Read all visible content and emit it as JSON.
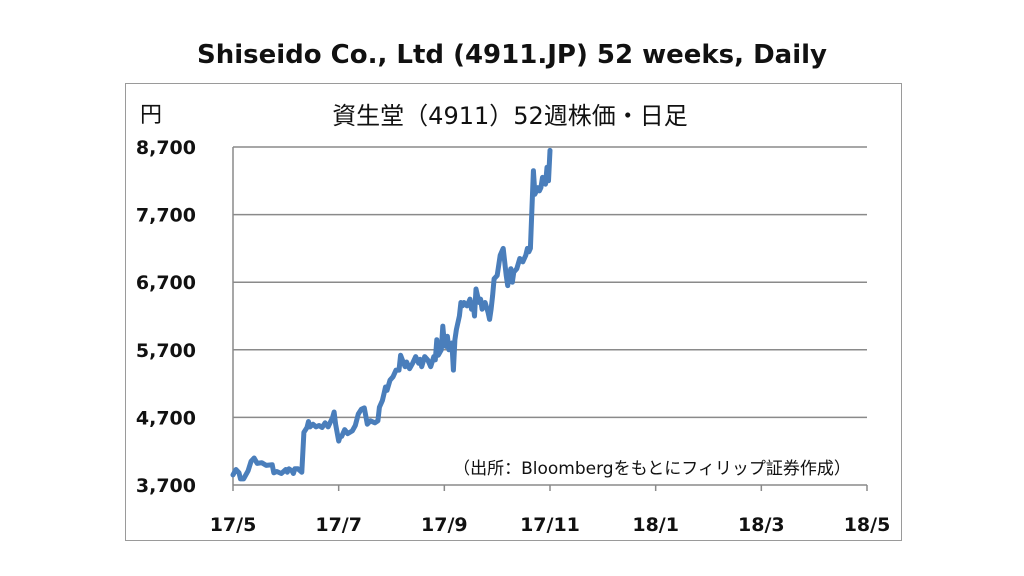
{
  "title": "Shiseido Co., Ltd (4911.JP) 52 weeks, Daily",
  "chart_data": {
    "type": "line",
    "title": "資生堂（4911）52週株価・日足",
    "ylabel": "円",
    "source": "（出所：Bloombergをもとにフィリップ証券作成）",
    "ylim": [
      3700,
      8700
    ],
    "yticks": [
      "3,700",
      "4,700",
      "5,700",
      "6,700",
      "7,700",
      "8,700"
    ],
    "xticks": [
      "17/5",
      "17/7",
      "17/9",
      "17/11",
      "18/1",
      "18/3",
      "18/5"
    ],
    "grid": true,
    "series": [
      {
        "color": "#4a7ebb",
        "points": [
          [
            0.0,
            3850
          ],
          [
            0.1,
            3930
          ],
          [
            0.2,
            3880
          ],
          [
            0.25,
            3790
          ],
          [
            0.35,
            3790
          ],
          [
            0.5,
            3910
          ],
          [
            0.6,
            4050
          ],
          [
            0.7,
            4100
          ],
          [
            0.8,
            4020
          ],
          [
            0.95,
            4030
          ],
          [
            1.1,
            3990
          ],
          [
            1.3,
            4000
          ],
          [
            1.35,
            3880
          ],
          [
            1.45,
            3900
          ],
          [
            1.6,
            3870
          ],
          [
            1.75,
            3930
          ],
          [
            1.8,
            3890
          ],
          [
            1.85,
            3940
          ],
          [
            1.95,
            3910
          ],
          [
            2.0,
            3870
          ],
          [
            2.05,
            3940
          ],
          [
            2.15,
            3940
          ],
          [
            2.2,
            3920
          ],
          [
            2.28,
            3890
          ],
          [
            2.35,
            4480
          ],
          [
            2.45,
            4550
          ],
          [
            2.5,
            4640
          ],
          [
            2.55,
            4560
          ],
          [
            2.65,
            4600
          ],
          [
            2.75,
            4560
          ],
          [
            2.85,
            4580
          ],
          [
            2.95,
            4550
          ],
          [
            3.05,
            4620
          ],
          [
            3.15,
            4560
          ],
          [
            3.3,
            4700
          ],
          [
            3.35,
            4780
          ],
          [
            3.4,
            4600
          ],
          [
            3.5,
            4350
          ],
          [
            3.55,
            4420
          ],
          [
            3.6,
            4420
          ],
          [
            3.7,
            4520
          ],
          [
            3.8,
            4460
          ],
          [
            3.95,
            4500
          ],
          [
            4.05,
            4580
          ],
          [
            4.15,
            4750
          ],
          [
            4.25,
            4820
          ],
          [
            4.35,
            4840
          ],
          [
            4.45,
            4600
          ],
          [
            4.55,
            4650
          ],
          [
            4.7,
            4620
          ],
          [
            4.8,
            4650
          ],
          [
            4.85,
            4850
          ],
          [
            4.95,
            4950
          ],
          [
            5.0,
            5050
          ],
          [
            5.05,
            5150
          ],
          [
            5.1,
            5100
          ],
          [
            5.2,
            5250
          ],
          [
            5.3,
            5300
          ],
          [
            5.4,
            5400
          ],
          [
            5.5,
            5400
          ],
          [
            5.55,
            5620
          ],
          [
            5.65,
            5500
          ],
          [
            5.7,
            5450
          ],
          [
            5.75,
            5520
          ],
          [
            5.85,
            5420
          ],
          [
            5.95,
            5500
          ],
          [
            6.05,
            5600
          ],
          [
            6.15,
            5500
          ],
          [
            6.2,
            5560
          ],
          [
            6.25,
            5450
          ],
          [
            6.35,
            5600
          ],
          [
            6.45,
            5550
          ],
          [
            6.5,
            5500
          ],
          [
            6.55,
            5450
          ],
          [
            6.65,
            5600
          ],
          [
            6.7,
            5550
          ],
          [
            6.75,
            5850
          ],
          [
            6.8,
            5620
          ],
          [
            6.9,
            5700
          ],
          [
            6.95,
            6050
          ],
          [
            7.0,
            5800
          ],
          [
            7.05,
            5750
          ],
          [
            7.1,
            5900
          ],
          [
            7.15,
            5700
          ],
          [
            7.25,
            5800
          ],
          [
            7.3,
            5400
          ],
          [
            7.35,
            5850
          ],
          [
            7.4,
            6000
          ],
          [
            7.5,
            6200
          ],
          [
            7.55,
            6400
          ],
          [
            7.6,
            6350
          ],
          [
            7.65,
            6400
          ],
          [
            7.75,
            6350
          ],
          [
            7.85,
            6450
          ],
          [
            7.9,
            6300
          ],
          [
            7.95,
            6400
          ],
          [
            8.0,
            6200
          ],
          [
            8.05,
            6600
          ],
          [
            8.1,
            6500
          ],
          [
            8.15,
            6400
          ],
          [
            8.2,
            6450
          ],
          [
            8.25,
            6300
          ],
          [
            8.35,
            6400
          ],
          [
            8.45,
            6250
          ],
          [
            8.5,
            6150
          ],
          [
            8.55,
            6300
          ],
          [
            8.6,
            6500
          ],
          [
            8.65,
            6750
          ],
          [
            8.75,
            6800
          ],
          [
            8.85,
            7100
          ],
          [
            8.95,
            7200
          ],
          [
            9.05,
            6800
          ],
          [
            9.1,
            6650
          ],
          [
            9.15,
            6800
          ],
          [
            9.2,
            6900
          ],
          [
            9.25,
            6700
          ],
          [
            9.3,
            6850
          ],
          [
            9.4,
            6900
          ],
          [
            9.5,
            7050
          ],
          [
            9.6,
            7000
          ],
          [
            9.7,
            7100
          ],
          [
            9.75,
            7200
          ],
          [
            9.8,
            7150
          ],
          [
            9.85,
            7200
          ],
          [
            9.95,
            8350
          ],
          [
            10.0,
            8000
          ],
          [
            10.05,
            8050
          ],
          [
            10.1,
            8100
          ],
          [
            10.15,
            8050
          ],
          [
            10.2,
            8100
          ],
          [
            10.25,
            8250
          ],
          [
            10.3,
            8200
          ],
          [
            10.35,
            8150
          ],
          [
            10.4,
            8400
          ],
          [
            10.45,
            8200
          ],
          [
            10.5,
            8650
          ]
        ]
      }
    ]
  }
}
